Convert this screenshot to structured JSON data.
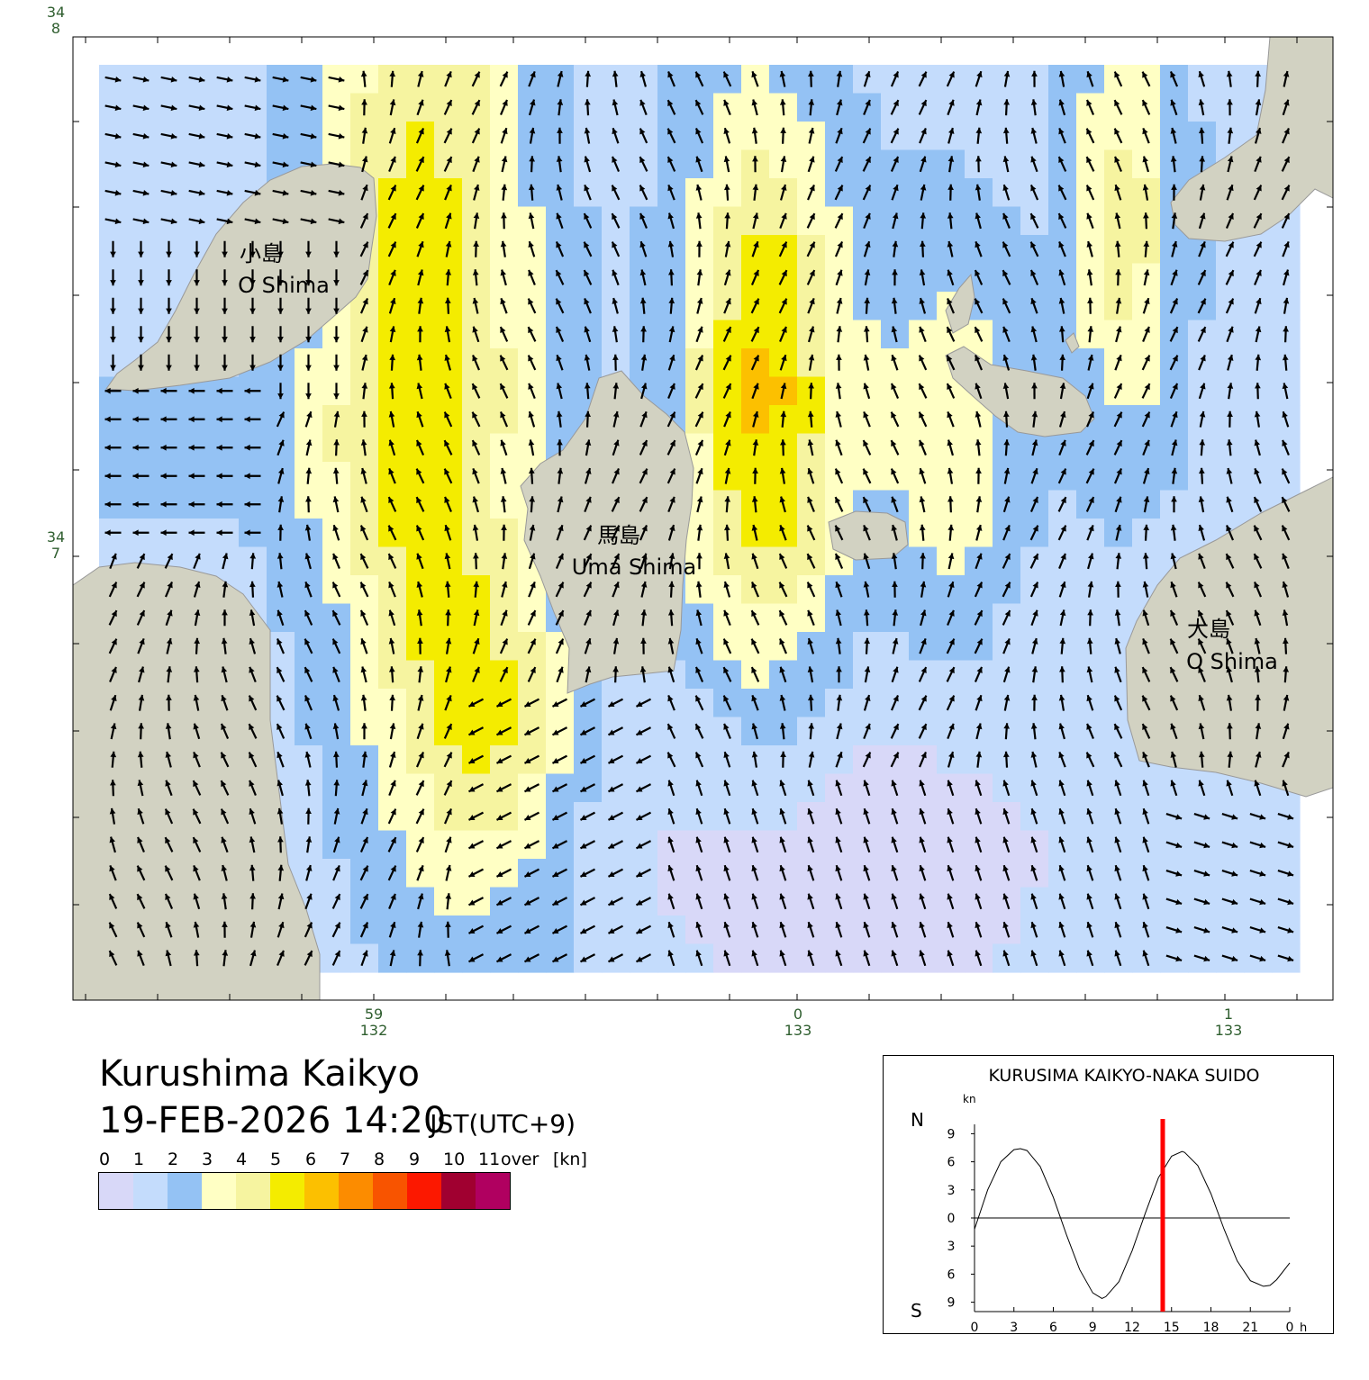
{
  "map": {
    "places": [
      {
        "name_ja": "小島",
        "name_en": "O Shima"
      },
      {
        "name_ja": "馬島",
        "name_en": "Uma Shima"
      },
      {
        "name_ja": "大島",
        "name_en": "O Shima"
      }
    ],
    "lat_labels": [
      {
        "deg": "34",
        "min": "8"
      },
      {
        "deg": "34",
        "min": "7"
      }
    ],
    "lon_labels": [
      {
        "min": "59",
        "deg": "132"
      },
      {
        "min": "0",
        "deg": "133"
      },
      {
        "min": "1",
        "deg": "133"
      }
    ],
    "colors": {
      "land": "#d2d2c2",
      "water_bg": "#ffffff",
      "arrow": "#000000"
    }
  },
  "title": {
    "location": "Kurushima Kaikyo",
    "datetime": "19-FEB-2026 14:20",
    "timezone": "JST(UTC+9)"
  },
  "legend": {
    "labels": [
      "0",
      "1",
      "2",
      "3",
      "4",
      "5",
      "6",
      "7",
      "8",
      "9",
      "10",
      "11"
    ],
    "over_label": "over",
    "unit": "[kn]",
    "colors": [
      "#d8d8f8",
      "#c4dcfc",
      "#94c2f4",
      "#ffffc4",
      "#f6f4a0",
      "#f4ec00",
      "#fcc000",
      "#fc8c00",
      "#f85400",
      "#fc1800",
      "#a00030",
      "#b00060"
    ]
  },
  "chart_data": {
    "type": "line",
    "title": "KURUSIMA KAIKYO-NAKA SUIDO",
    "ylabel_unit": "kn",
    "north_label": "N",
    "south_label": "S",
    "x_ticks": [
      "0",
      "3",
      "6",
      "9",
      "12",
      "15",
      "18",
      "21",
      "0"
    ],
    "x_unit": "h",
    "y_ticks": [
      "9",
      "6",
      "3",
      "0",
      "3",
      "6",
      "9"
    ],
    "ylim": [
      -10,
      10
    ],
    "xlim": [
      0,
      24
    ],
    "series": [
      {
        "x": [
          0,
          1,
          2,
          3,
          3.5,
          4,
          5,
          6,
          7,
          8,
          9,
          9.7,
          10,
          11,
          12,
          13,
          14,
          15,
          15.8,
          16,
          17,
          18,
          19,
          20,
          21,
          22,
          22.5,
          23,
          24
        ],
        "values": [
          -1.2,
          3.0,
          6.0,
          7.3,
          7.4,
          7.2,
          5.5,
          2.2,
          -1.8,
          -5.5,
          -8.0,
          -8.6,
          -8.4,
          -6.8,
          -3.5,
          0.5,
          4.3,
          6.6,
          7.1,
          7.0,
          5.6,
          2.6,
          -1.2,
          -4.6,
          -6.7,
          -7.3,
          -7.2,
          -6.6,
          -4.8
        ]
      }
    ],
    "current_time_hour": 14.33,
    "current_marker_color": "#ff0000"
  }
}
